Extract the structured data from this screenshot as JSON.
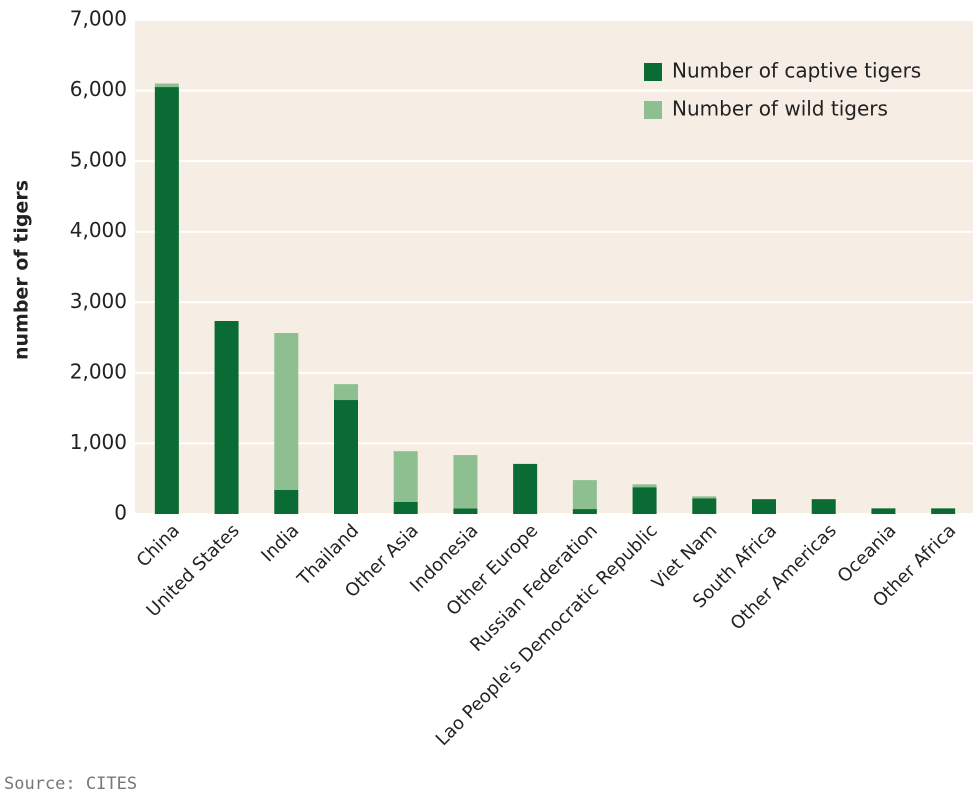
{
  "chart_data": {
    "type": "stacked_bar",
    "y_axis_label": "number of tigers",
    "categories": [
      "China",
      "United States",
      "India",
      "Thailand",
      "Other Asia",
      "Indonesia",
      "Other Europe",
      "Russian Federation",
      "Lao People's Democratic Republic",
      "Viet Nam",
      "South Africa",
      "Other Americas",
      "Oceania",
      "Other Africa"
    ],
    "series": [
      {
        "name": "Number of captive tigers",
        "color": "#0b6b35",
        "values": [
          6050,
          2735,
          340,
          1615,
          170,
          80,
          710,
          70,
          380,
          220,
          210,
          210,
          80,
          80
        ]
      },
      {
        "name": "Number of wild tigers",
        "color": "#8dbf90",
        "values": [
          50,
          0,
          2225,
          225,
          720,
          755,
          0,
          410,
          40,
          30,
          0,
          0,
          0,
          0
        ]
      }
    ],
    "ylim": [
      0,
      7000
    ],
    "yticks": [
      0,
      {
        "value": 1000,
        "label": "1,000"
      },
      {
        "value": 2000,
        "label": "2,000"
      },
      {
        "value": 3000,
        "label": "3,000"
      },
      {
        "value": 4000,
        "label": "4,000"
      },
      {
        "value": 5000,
        "label": "5,000"
      },
      {
        "value": 6000,
        "label": "6,000"
      },
      {
        "value": 7000,
        "label": "7,000"
      }
    ],
    "grid": true,
    "legend_position": "top-right",
    "source": "Source: CITES"
  }
}
